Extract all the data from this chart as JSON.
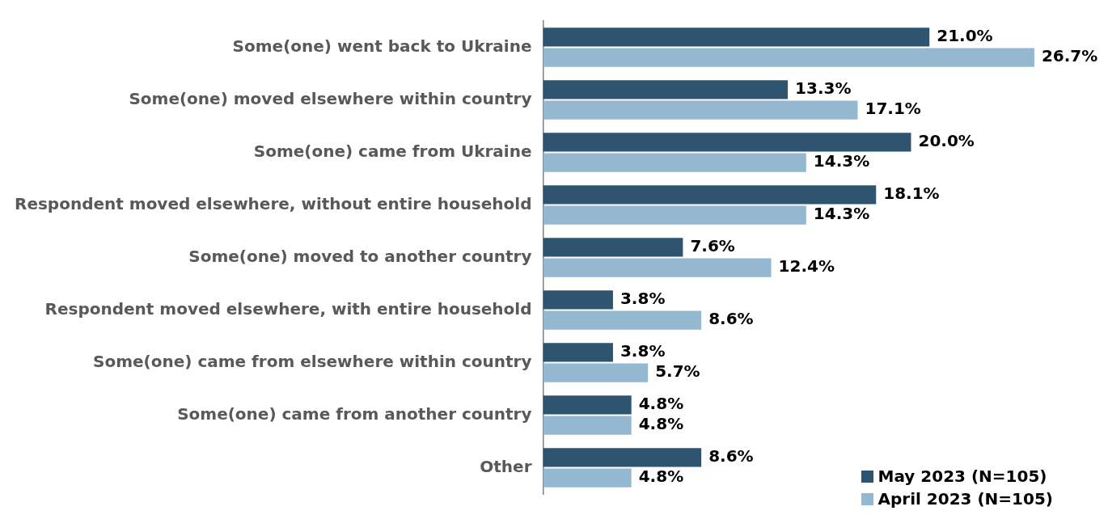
{
  "chart_data": {
    "type": "bar",
    "orientation": "horizontal",
    "categories": [
      "Some(one) went back to Ukraine",
      "Some(one) moved elsewhere within country",
      "Some(one) came from Ukraine",
      "Respondent moved elsewhere, without entire household",
      "Some(one) moved to another country",
      "Respondent moved elsewhere, with entire household",
      "Some(one) came from elsewhere within country",
      "Some(one) came from another country",
      "Other"
    ],
    "series": [
      {
        "name": "May 2023 (N=105)",
        "color": "#2e5470",
        "values": [
          21.0,
          13.3,
          20.0,
          18.1,
          7.6,
          3.8,
          3.8,
          4.8,
          8.6
        ],
        "value_labels": [
          "21.0%",
          "13.3%",
          "20.0%",
          "18.1%",
          "7.6%",
          "3.8%",
          "3.8%",
          "4.8%",
          "8.6%"
        ]
      },
      {
        "name": "April 2023 (N=105)",
        "color": "#95b8d1",
        "values": [
          26.7,
          17.1,
          14.3,
          14.3,
          12.4,
          8.6,
          5.7,
          4.8,
          4.8
        ],
        "value_labels": [
          "26.7%",
          "17.1%",
          "14.3%",
          "14.3%",
          "12.4%",
          "8.6%",
          "5.7%",
          "4.8%",
          "4.8%"
        ]
      }
    ],
    "tick_labels": "y",
    "grid": false,
    "legend": "bottom right"
  }
}
